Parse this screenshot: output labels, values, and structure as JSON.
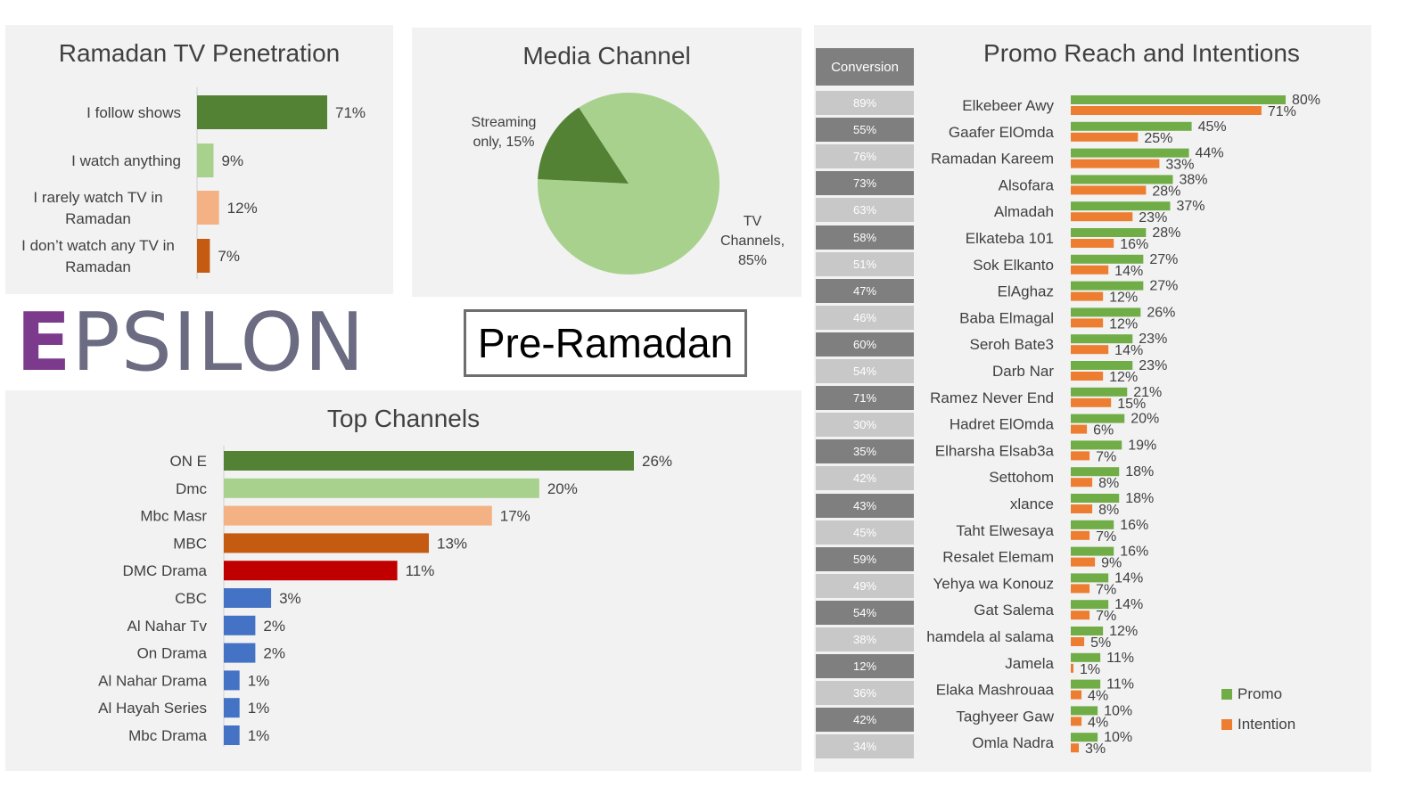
{
  "panels": {
    "penetration_title": "Ramadan TV Penetration",
    "media_title": "Media Channel",
    "top_channels_title": "Top Channels",
    "promo_title": "Promo Reach and Intentions"
  },
  "logo": {
    "first": "E",
    "rest": "PSILON"
  },
  "stage_label": "Pre-Ramadan",
  "conversion_header": "Conversion",
  "conversion_values": [
    "89%",
    "55%",
    "76%",
    "73%",
    "63%",
    "58%",
    "51%",
    "47%",
    "46%",
    "60%",
    "54%",
    "71%",
    "30%",
    "35%",
    "42%",
    "43%",
    "45%",
    "59%",
    "49%",
    "54%",
    "38%",
    "12%",
    "36%",
    "42%",
    "34%"
  ],
  "colors": {
    "dark_green": "#548235",
    "light_green": "#a9d18e",
    "peach": "#f4b183",
    "orange": "#c55a11",
    "red": "#c00000",
    "blue": "#4472c4",
    "promo_green": "#70ad47",
    "intention_orange": "#ed7d31",
    "conv_dark": "#7f7f7f",
    "conv_light": "#c8c8c8"
  },
  "legend": {
    "promo": "Promo",
    "intention": "Intention"
  },
  "chart_data": [
    {
      "type": "bar",
      "orientation": "horizontal",
      "title": "Ramadan TV Penetration",
      "categories": [
        "I follow shows",
        "I watch anything",
        "I rarely watch TV in Ramadan",
        "I don’t watch any TV in Ramadan"
      ],
      "category_lines": [
        [
          "I follow shows"
        ],
        [
          "I watch anything"
        ],
        [
          "I rarely watch TV in",
          "Ramadan"
        ],
        [
          "I don’t watch any TV in",
          "Ramadan"
        ]
      ],
      "values": [
        71,
        9,
        12,
        7
      ],
      "labels": [
        "71%",
        "9%",
        "12%",
        "7%"
      ],
      "colors": [
        "#548235",
        "#a9d18e",
        "#f4b183",
        "#c55a11"
      ],
      "xlim": [
        0,
        100
      ]
    },
    {
      "type": "pie",
      "title": "Media Channel",
      "slices": [
        {
          "name": "TV Channels",
          "value": 85,
          "label_lines": [
            "TV",
            "Channels,",
            "85%"
          ],
          "color": "#a9d18e"
        },
        {
          "name": "Streaming only",
          "value": 15,
          "label_lines": [
            "Streaming",
            "only, 15%"
          ],
          "color": "#548235"
        }
      ]
    },
    {
      "type": "bar",
      "orientation": "horizontal",
      "title": "Top Channels",
      "categories": [
        "ON E",
        "Dmc",
        "Mbc Masr",
        "MBC",
        "DMC Drama",
        "CBC",
        "Al Nahar Tv",
        "On Drama",
        "Al Nahar Drama",
        "Al Hayah Series",
        "Mbc Drama"
      ],
      "values": [
        26,
        20,
        17,
        13,
        11,
        3,
        2,
        2,
        1,
        1,
        1
      ],
      "labels": [
        "26%",
        "20%",
        "17%",
        "13%",
        "11%",
        "3%",
        "2%",
        "2%",
        "1%",
        "1%",
        "1%"
      ],
      "colors": [
        "#548235",
        "#a9d18e",
        "#f4b183",
        "#c55a11",
        "#c00000",
        "#4472c4",
        "#4472c4",
        "#4472c4",
        "#4472c4",
        "#4472c4",
        "#4472c4"
      ],
      "xlim": [
        0,
        30
      ]
    },
    {
      "type": "bar",
      "orientation": "horizontal",
      "title": "Promo Reach and Intentions",
      "categories": [
        "Elkebeer Awy",
        "Gaafer ElOmda",
        "Ramadan Kareem",
        "Alsofara",
        "Almadah",
        "Elkateba 101",
        "Sok Elkanto",
        "ElAghaz",
        "Baba Elmagal",
        "Seroh Bate3",
        "Darb Nar",
        "Ramez Never End",
        "Hadret ElOmda",
        "Elharsha Elsab3a",
        "Settohom",
        "xlance",
        "Taht Elwesaya",
        "Resalet Elemam",
        "Yehya wa Konouz",
        "Gat Salema",
        "hamdela al salama",
        "Jamela",
        "Elaka Mashrouaa",
        "Taghyeer Gaw",
        "Omla Nadra"
      ],
      "series": [
        {
          "name": "Promo",
          "values": [
            80,
            45,
            44,
            38,
            37,
            28,
            27,
            27,
            26,
            23,
            23,
            21,
            20,
            19,
            18,
            18,
            16,
            16,
            14,
            14,
            12,
            11,
            11,
            10,
            10
          ],
          "color": "#70ad47"
        },
        {
          "name": "Intention",
          "values": [
            71,
            25,
            33,
            28,
            23,
            16,
            14,
            12,
            12,
            14,
            12,
            15,
            6,
            7,
            8,
            8,
            7,
            9,
            7,
            7,
            5,
            1,
            4,
            4,
            3
          ],
          "color": "#ed7d31"
        }
      ],
      "xlim": [
        0,
        100
      ],
      "legend": "bottom-right"
    }
  ]
}
